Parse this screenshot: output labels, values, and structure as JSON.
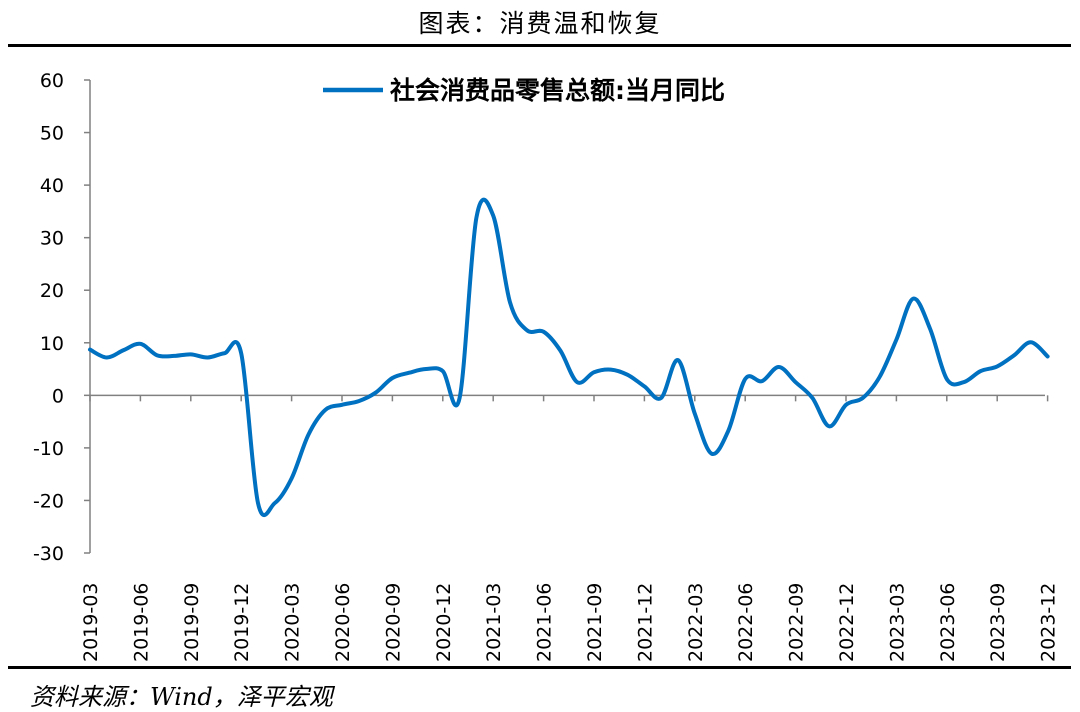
{
  "header": {
    "title": "图表：消费温和恢复"
  },
  "footer": {
    "source": "资料来源：Wind，泽平宏观"
  },
  "chart_data": {
    "type": "line",
    "title": "",
    "xlabel": "",
    "ylabel": "",
    "ylim": [
      -30,
      60
    ],
    "yticks": [
      60,
      50,
      40,
      30,
      20,
      10,
      0,
      -10,
      -20,
      -30
    ],
    "x_tick_labels": [
      "2019-03",
      "2019-06",
      "2019-09",
      "2019-12",
      "2020-03",
      "2020-06",
      "2020-09",
      "2020-12",
      "2021-03",
      "2021-06",
      "2021-09",
      "2021-12",
      "2022-03",
      "2022-06",
      "2022-09",
      "2022-12",
      "2023-03",
      "2023-06",
      "2023-09",
      "2023-12"
    ],
    "legend_position": "top",
    "grid": false,
    "colors": {
      "series": "#0070C0",
      "axis": "#808080"
    },
    "x": [
      "2019-03",
      "2019-04",
      "2019-05",
      "2019-06",
      "2019-07",
      "2019-08",
      "2019-09",
      "2019-10",
      "2019-11",
      "2019-12",
      "2020-01",
      "2020-02",
      "2020-03",
      "2020-04",
      "2020-05",
      "2020-06",
      "2020-07",
      "2020-08",
      "2020-09",
      "2020-10",
      "2020-11",
      "2020-12",
      "2021-01",
      "2021-02",
      "2021-03",
      "2021-04",
      "2021-05",
      "2021-06",
      "2021-07",
      "2021-08",
      "2021-09",
      "2021-10",
      "2021-11",
      "2021-12",
      "2022-01",
      "2022-02",
      "2022-03",
      "2022-04",
      "2022-05",
      "2022-06",
      "2022-07",
      "2022-08",
      "2022-09",
      "2022-10",
      "2022-11",
      "2022-12",
      "2023-01",
      "2023-02",
      "2023-03",
      "2023-04",
      "2023-05",
      "2023-06",
      "2023-07",
      "2023-08",
      "2023-09",
      "2023-10",
      "2023-11",
      "2023-12"
    ],
    "series": [
      {
        "name": "社会消费品零售总额:当月同比",
        "values": [
          8.7,
          7.2,
          8.6,
          9.8,
          7.6,
          7.5,
          7.8,
          7.2,
          8.0,
          8.0,
          -20.5,
          -20.5,
          -15.8,
          -7.5,
          -2.8,
          -1.8,
          -1.1,
          0.5,
          3.3,
          4.3,
          5.0,
          4.6,
          -0.5,
          33.8,
          34.2,
          17.7,
          12.4,
          12.1,
          8.5,
          2.5,
          4.4,
          4.9,
          3.9,
          1.7,
          -0.5,
          6.7,
          -3.5,
          -11.1,
          -6.7,
          3.1,
          2.7,
          5.4,
          2.5,
          -0.5,
          -5.9,
          -1.8,
          -0.5,
          3.5,
          10.6,
          18.4,
          12.7,
          3.1,
          2.5,
          4.6,
          5.5,
          7.6,
          10.1,
          7.4
        ]
      }
    ]
  }
}
